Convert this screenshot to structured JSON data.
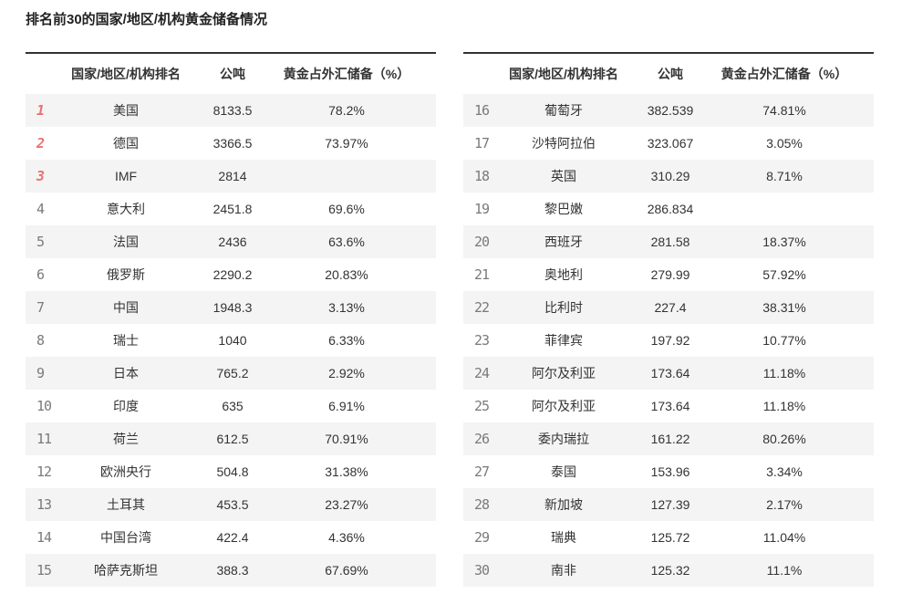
{
  "title": "排名前30的国家/地区/机构黄金储备情况",
  "header": {
    "rank": "",
    "name": "国家/地区/机构排名",
    "tonnes": "公吨",
    "percent": "黄金占外汇储备（%）"
  },
  "colors": {
    "top_rank_red": "#ee6f6f",
    "rank_gray": "#7a7a7a",
    "stripe_gray": "#f4f4f4",
    "top_border_dark": "#333333",
    "text": "#333333"
  },
  "chart_data": {
    "type": "table",
    "title": "排名前30的国家/地区/机构黄金储备情况",
    "columns": [
      "排名",
      "国家/地区/机构排名",
      "公吨",
      "黄金占外汇储备（%）"
    ],
    "layout": "two side-by-side tables, ranks 1-15 left, 16-30 right, odd rows striped gray, top-3 ranks highlighted red",
    "tables": [
      {
        "rows": [
          {
            "rank": "1",
            "name": "美国",
            "tonnes": "8133.5",
            "percent": "78.2%"
          },
          {
            "rank": "2",
            "name": "德国",
            "tonnes": "3366.5",
            "percent": "73.97%"
          },
          {
            "rank": "3",
            "name": "IMF",
            "tonnes": "2814",
            "percent": ""
          },
          {
            "rank": "4",
            "name": "意大利",
            "tonnes": "2451.8",
            "percent": "69.6%"
          },
          {
            "rank": "5",
            "name": "法国",
            "tonnes": "2436",
            "percent": "63.6%"
          },
          {
            "rank": "6",
            "name": "俄罗斯",
            "tonnes": "2290.2",
            "percent": "20.83%"
          },
          {
            "rank": "7",
            "name": "中国",
            "tonnes": "1948.3",
            "percent": "3.13%"
          },
          {
            "rank": "8",
            "name": "瑞士",
            "tonnes": "1040",
            "percent": "6.33%"
          },
          {
            "rank": "9",
            "name": "日本",
            "tonnes": "765.2",
            "percent": "2.92%"
          },
          {
            "rank": "10",
            "name": "印度",
            "tonnes": "635",
            "percent": "6.91%"
          },
          {
            "rank": "11",
            "name": "荷兰",
            "tonnes": "612.5",
            "percent": "70.91%"
          },
          {
            "rank": "12",
            "name": "欧洲央行",
            "tonnes": "504.8",
            "percent": "31.38%"
          },
          {
            "rank": "13",
            "name": "土耳其",
            "tonnes": "453.5",
            "percent": "23.27%"
          },
          {
            "rank": "14",
            "name": "中国台湾",
            "tonnes": "422.4",
            "percent": "4.36%"
          },
          {
            "rank": "15",
            "name": "哈萨克斯坦",
            "tonnes": "388.3",
            "percent": "67.69%"
          }
        ]
      },
      {
        "rows": [
          {
            "rank": "16",
            "name": "葡萄牙",
            "tonnes": "382.539",
            "percent": "74.81%"
          },
          {
            "rank": "17",
            "name": "沙特阿拉伯",
            "tonnes": "323.067",
            "percent": "3.05%"
          },
          {
            "rank": "18",
            "name": "英国",
            "tonnes": "310.29",
            "percent": "8.71%"
          },
          {
            "rank": "19",
            "name": "黎巴嫩",
            "tonnes": "286.834",
            "percent": ""
          },
          {
            "rank": "20",
            "name": "西班牙",
            "tonnes": "281.58",
            "percent": "18.37%"
          },
          {
            "rank": "21",
            "name": "奥地利",
            "tonnes": "279.99",
            "percent": "57.92%"
          },
          {
            "rank": "22",
            "name": "比利时",
            "tonnes": "227.4",
            "percent": "38.31%"
          },
          {
            "rank": "23",
            "name": "菲律宾",
            "tonnes": "197.92",
            "percent": "10.77%"
          },
          {
            "rank": "24",
            "name": "阿尔及利亚",
            "tonnes": "173.64",
            "percent": "11.18%"
          },
          {
            "rank": "25",
            "name": "阿尔及利亚",
            "tonnes": "173.64",
            "percent": "11.18%"
          },
          {
            "rank": "26",
            "name": "委内瑞拉",
            "tonnes": "161.22",
            "percent": "80.26%"
          },
          {
            "rank": "27",
            "name": "泰国",
            "tonnes": "153.96",
            "percent": "3.34%"
          },
          {
            "rank": "28",
            "name": "新加坡",
            "tonnes": "127.39",
            "percent": "2.17%"
          },
          {
            "rank": "29",
            "name": "瑞典",
            "tonnes": "125.72",
            "percent": "11.04%"
          },
          {
            "rank": "30",
            "name": "南非",
            "tonnes": "125.32",
            "percent": "11.1%"
          }
        ]
      }
    ]
  }
}
